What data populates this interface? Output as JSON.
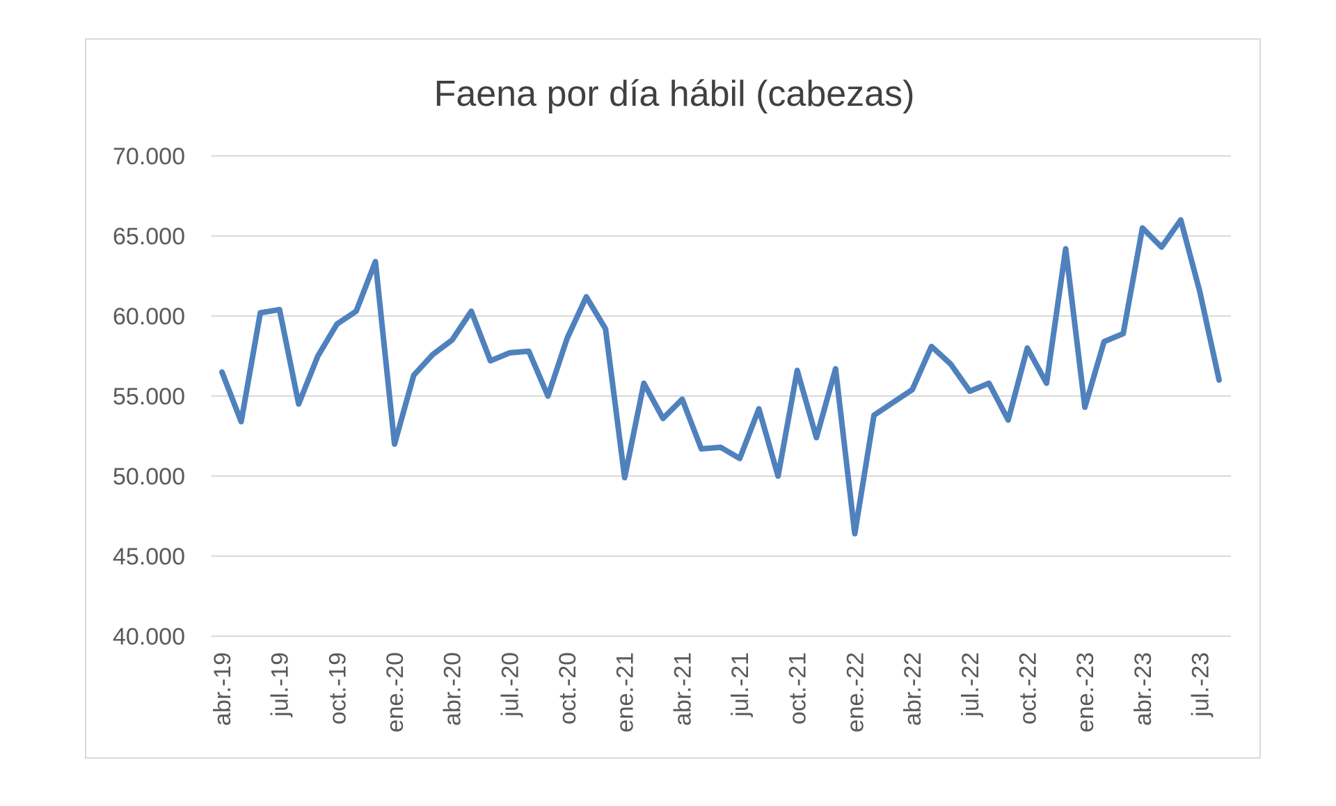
{
  "chart_data": {
    "type": "line",
    "title": "Faena por día hábil (cabezas)",
    "xlabel": "",
    "ylabel": "",
    "ylim": [
      40000,
      70000
    ],
    "yticks": [
      40000,
      45000,
      50000,
      55000,
      60000,
      65000,
      70000
    ],
    "ytick_labels": [
      "40.000",
      "45.000",
      "50.000",
      "55.000",
      "60.000",
      "65.000",
      "70.000"
    ],
    "grid": true,
    "legend": "none",
    "line_color": "#4f81bd",
    "x": [
      "abr.-19",
      "may.-19",
      "jun.-19",
      "jul.-19",
      "ago.-19",
      "sep.-19",
      "oct.-19",
      "nov.-19",
      "dic.-19",
      "ene.-20",
      "feb.-20",
      "mar.-20",
      "abr.-20",
      "may.-20",
      "jun.-20",
      "jul.-20",
      "ago.-20",
      "sep.-20",
      "oct.-20",
      "nov.-20",
      "dic.-20",
      "ene.-21",
      "feb.-21",
      "mar.-21",
      "abr.-21",
      "may.-21",
      "jun.-21",
      "jul.-21",
      "ago.-21",
      "sep.-21",
      "oct.-21",
      "nov.-21",
      "dic.-21",
      "ene.-22",
      "feb.-22",
      "mar.-22",
      "abr.-22",
      "may.-22",
      "jun.-22",
      "jul.-22",
      "ago.-22",
      "sep.-22",
      "oct.-22",
      "nov.-22",
      "dic.-22",
      "ene.-23",
      "feb.-23",
      "mar.-23",
      "abr.-23",
      "may.-23",
      "jun.-23",
      "jul.-23",
      "ago.-23"
    ],
    "tick_labels_shown": [
      "abr.-19",
      "jul.-19",
      "oct.-19",
      "ene.-20",
      "abr.-20",
      "jul.-20",
      "oct.-20",
      "ene.-21",
      "abr.-21",
      "jul.-21",
      "oct.-21",
      "ene.-22",
      "abr.-22",
      "jul.-22",
      "oct.-22",
      "ene.-23",
      "abr.-23",
      "jul.-23"
    ],
    "series": [
      {
        "values": [
          56500,
          53400,
          60200,
          60400,
          54500,
          57500,
          59500,
          60300,
          63400,
          52000,
          56300,
          57600,
          58500,
          60300,
          57200,
          57700,
          57800,
          55000,
          58600,
          61200,
          59200,
          49900,
          55800,
          53600,
          54800,
          51700,
          51800,
          51100,
          54200,
          50000,
          56600,
          52400,
          56700,
          46400,
          53800,
          54600,
          55400,
          58100,
          57000,
          55300,
          55800,
          53500,
          58000,
          55800,
          64200,
          54300,
          58400,
          58900,
          65500,
          64300,
          66000,
          61500,
          56000
        ]
      }
    ]
  }
}
